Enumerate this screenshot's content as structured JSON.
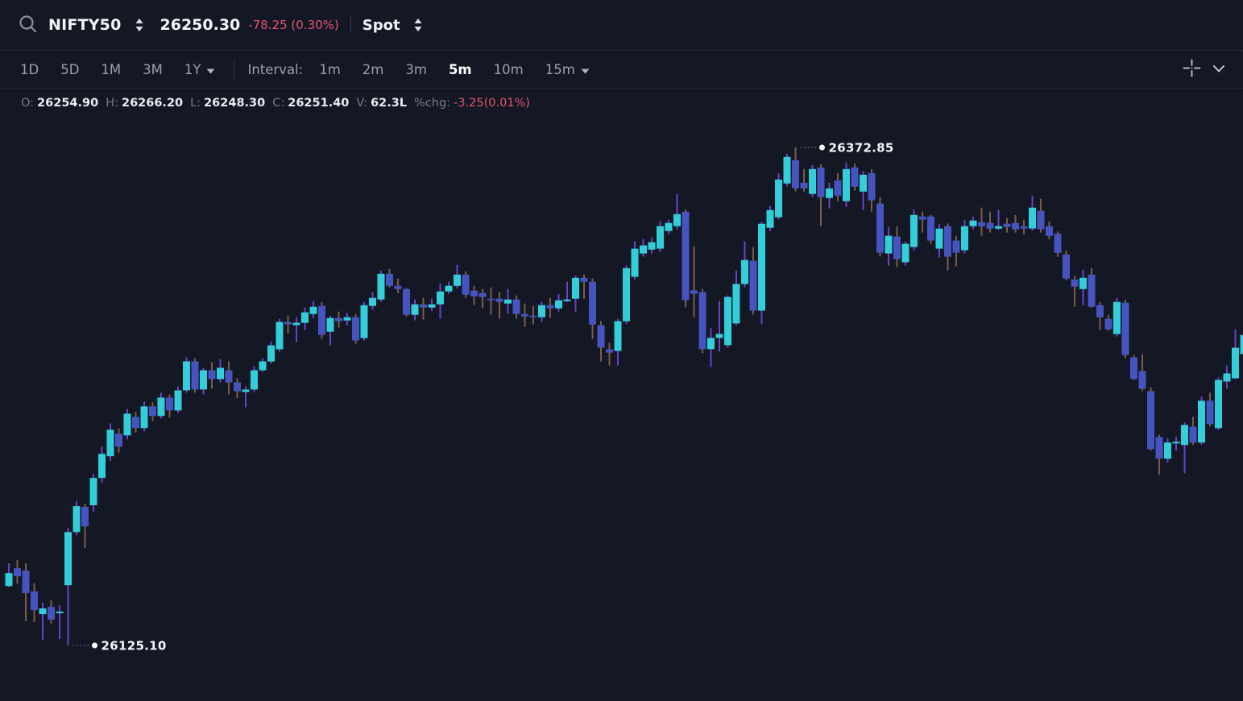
{
  "header": {
    "symbol": "NIFTY50",
    "price": "26250.30",
    "change": "-78.25 (0.30%)",
    "market_type": "Spot"
  },
  "toolbar": {
    "ranges": [
      "1D",
      "5D",
      "1M",
      "3M"
    ],
    "range_dropdown": "1Y",
    "interval_label": "Interval:",
    "intervals": [
      "1m",
      "2m",
      "3m",
      "5m",
      "10m"
    ],
    "interval_dropdown": "15m",
    "active_interval": "5m"
  },
  "ohlc": {
    "o_label": "O:",
    "o": "26254.90",
    "h_label": "H:",
    "h": "26266.20",
    "l_label": "L:",
    "l": "26248.30",
    "c_label": "C:",
    "c": "26251.40",
    "v_label": "V:",
    "v": "62.3L",
    "chg_label": "%chg:",
    "chg": "-3.25(0.01%)"
  },
  "chart_data": {
    "type": "candlestick",
    "symbol": "NIFTY50",
    "interval": "5m",
    "legend_position": "none",
    "grid": false,
    "price_high": 26372.85,
    "price_low": 26125.1,
    "high_label": "26372.85",
    "low_label": "26125.10",
    "colors": {
      "background": "#131824",
      "up_body": "#33CED9",
      "down_body": "#4754C0",
      "up_wick": "#6843C8",
      "down_wick": "#7D5B4A",
      "marker_dot": "#FFFFFF",
      "marker_line": "#8F93A0",
      "negative_text": "#E4566E"
    },
    "candles": [
      [
        26154.6,
        26165.9,
        26154.2,
        26161.1
      ],
      [
        26163.5,
        26167.5,
        26155.8,
        26159.5
      ],
      [
        26162.3,
        26165.9,
        26137.1,
        26151.1
      ],
      [
        26151.9,
        26156.1,
        26136.7,
        26142.7
      ],
      [
        26140.7,
        26146.3,
        26127.9,
        26143.5
      ],
      [
        26144.3,
        26147.5,
        26135.9,
        26137.9
      ],
      [
        26141.1,
        26145.1,
        26128.3,
        26141.9
      ],
      [
        26155.1,
        26183.5,
        26125.1,
        26181.5
      ],
      [
        26181.5,
        26197.0,
        26179.9,
        26194.4
      ],
      [
        26194.0,
        26195.6,
        26173.6,
        26184.3
      ],
      [
        26194.8,
        26210.4,
        26191.6,
        26208.4
      ],
      [
        26208.4,
        26224.0,
        26206.0,
        26220.4
      ],
      [
        26219.2,
        26235.6,
        26217.0,
        26232.4
      ],
      [
        26230.4,
        26233.0,
        26221.0,
        26224.0
      ],
      [
        26229.6,
        26242.8,
        26227.6,
        26240.4
      ],
      [
        26238.8,
        26241.2,
        26231.0,
        26233.2
      ],
      [
        26233.2,
        26246.4,
        26231.6,
        26244.0
      ],
      [
        26244.0,
        26246.0,
        26236.8,
        26239.2
      ],
      [
        26239.2,
        26250.8,
        26238.0,
        26248.4
      ],
      [
        26248.4,
        26250.0,
        26238.4,
        26242.0
      ],
      [
        26242.0,
        26254.0,
        26240.8,
        26252.0
      ],
      [
        26252.0,
        26268.4,
        26250.8,
        26266.4
      ],
      [
        26266.4,
        26268.0,
        26250.8,
        26252.4
      ],
      [
        26252.4,
        26263.2,
        26250.0,
        26262.0
      ],
      [
        26262.0,
        26266.0,
        26252.8,
        26257.6
      ],
      [
        26257.6,
        26267.6,
        26256.0,
        26263.2
      ],
      [
        26262.0,
        26266.4,
        26250.0,
        26256.0
      ],
      [
        26256.0,
        26258.0,
        26248.0,
        26251.6
      ],
      [
        26251.2,
        26254.0,
        26243.6,
        26252.4
      ],
      [
        26252.4,
        26264.0,
        26251.2,
        26262.0
      ],
      [
        26262.0,
        26268.0,
        26261.2,
        26266.4
      ],
      [
        26266.4,
        26276.4,
        26265.2,
        26274.4
      ],
      [
        26272.4,
        26287.6,
        26271.2,
        26286.0
      ],
      [
        26286.0,
        26289.2,
        26280.4,
        26284.8
      ],
      [
        26284.4,
        26288.4,
        26276.0,
        26285.6
      ],
      [
        26285.6,
        26293.2,
        26282.0,
        26290.8
      ],
      [
        26290.0,
        26296.4,
        26288.0,
        26293.6
      ],
      [
        26294.0,
        26296.0,
        26277.6,
        26279.6
      ],
      [
        26281.2,
        26289.2,
        26274.4,
        26288.0
      ],
      [
        26288.0,
        26291.2,
        26283.2,
        26286.4
      ],
      [
        26286.8,
        26290.4,
        26284.4,
        26288.4
      ],
      [
        26288.4,
        26290.0,
        26275.2,
        26276.8
      ],
      [
        26278.0,
        26296.0,
        26276.8,
        26294.4
      ],
      [
        26294.0,
        26300.8,
        26292.0,
        26298.0
      ],
      [
        26297.2,
        26311.6,
        26296.0,
        26310.0
      ],
      [
        26310.0,
        26312.4,
        26303.2,
        26304.0
      ],
      [
        26304.0,
        26307.6,
        26300.4,
        26302.4
      ],
      [
        26302.4,
        26302.8,
        26288.8,
        26289.6
      ],
      [
        26289.6,
        26297.2,
        26286.8,
        26294.8
      ],
      [
        26294.8,
        26298.0,
        26287.2,
        26293.2
      ],
      [
        26293.2,
        26297.6,
        26291.6,
        26294.8
      ],
      [
        26294.8,
        26305.2,
        26287.6,
        26301.2
      ],
      [
        26301.2,
        26306.0,
        26300.0,
        26304.0
      ],
      [
        26304.0,
        26314.4,
        26302.8,
        26309.6
      ],
      [
        26309.6,
        26311.2,
        26298.0,
        26299.6
      ],
      [
        26301.6,
        26304.0,
        26294.4,
        26298.8
      ],
      [
        26300.4,
        26302.4,
        26292.8,
        26298.4
      ],
      [
        26297.6,
        26303.2,
        26289.6,
        26297.0
      ],
      [
        26297.6,
        26300.8,
        26287.6,
        26296.0
      ],
      [
        26295.2,
        26302.4,
        26290.0,
        26297.2
      ],
      [
        26297.2,
        26299.2,
        26287.6,
        26290.0
      ],
      [
        26290.0,
        26295.2,
        26283.6,
        26288.8
      ],
      [
        26289.2,
        26294.0,
        26284.8,
        26288.4
      ],
      [
        26288.4,
        26296.0,
        26286.0,
        26294.4
      ],
      [
        26294.4,
        26298.0,
        26288.0,
        26292.8
      ],
      [
        26292.8,
        26300.0,
        26291.2,
        26296.8
      ],
      [
        26296.4,
        26306.0,
        26296.0,
        26297.2
      ],
      [
        26297.6,
        26309.2,
        26291.2,
        26308.0
      ],
      [
        26308.0,
        26309.6,
        26297.6,
        26306.0
      ],
      [
        26306.0,
        26307.6,
        26277.6,
        26284.8
      ],
      [
        26284.4,
        26286.4,
        26266.4,
        26273.2
      ],
      [
        26272.4,
        26275.6,
        26264.4,
        26270.8
      ],
      [
        26271.6,
        26287.6,
        26264.4,
        26286.4
      ],
      [
        26286.4,
        26314.1,
        26285.0,
        26312.8
      ],
      [
        26308.5,
        26326.1,
        26307.3,
        26322.5
      ],
      [
        26320.1,
        26327.3,
        26318.5,
        26324.1
      ],
      [
        26322.0,
        26328.1,
        26320.1,
        26325.7
      ],
      [
        26322.5,
        26336.1,
        26320.9,
        26333.7
      ],
      [
        26331.3,
        26336.9,
        26329.7,
        26335.3
      ],
      [
        26333.7,
        26349.7,
        26332.1,
        26339.7
      ],
      [
        26340.9,
        26342.1,
        26293.3,
        26296.9
      ],
      [
        26301.7,
        26323.7,
        26288.5,
        26300.1
      ],
      [
        26300.9,
        26302.5,
        26270.5,
        26272.5
      ],
      [
        26272.5,
        26282.9,
        26263.7,
        26278.1
      ],
      [
        26278.1,
        26296.5,
        26271.3,
        26280.1
      ],
      [
        26274.5,
        26299.3,
        26273.3,
        26298.5
      ],
      [
        26285.3,
        26311.7,
        26284.1,
        26304.9
      ],
      [
        26304.9,
        26326.1,
        26303.3,
        26316.9
      ],
      [
        26316.5,
        26323.3,
        26289.7,
        26291.7
      ],
      [
        26291.7,
        26335.7,
        26284.9,
        26334.9
      ],
      [
        26332.9,
        26343.7,
        26331.3,
        26341.7
      ],
      [
        26338.1,
        26360.1,
        26337.0,
        26356.9
      ],
      [
        26354.9,
        26369.7,
        26353.5,
        26368.1
      ],
      [
        26366.5,
        26372.85,
        26351.0,
        26352.5
      ],
      [
        26355.3,
        26362.1,
        26350.9,
        26352.5
      ],
      [
        26349.7,
        26364.1,
        26348.1,
        26362.1
      ],
      [
        26362.9,
        26364.5,
        26333.7,
        26348.1
      ],
      [
        26347.7,
        26355.3,
        26342.5,
        26352.5
      ],
      [
        26356.5,
        26360.1,
        26346.1,
        26348.9
      ],
      [
        26346.1,
        26365.3,
        26343.3,
        26362.1
      ],
      [
        26362.9,
        26364.9,
        26351.3,
        26353.3
      ],
      [
        26350.9,
        26361.0,
        26341.7,
        26359.3
      ],
      [
        26360.1,
        26362.0,
        26340.9,
        26346.5
      ],
      [
        26344.9,
        26348.1,
        26318.5,
        26320.5
      ],
      [
        26320.1,
        26333.2,
        26314.1,
        26328.9
      ],
      [
        26328.5,
        26333.7,
        26313.3,
        26317.3
      ],
      [
        26315.7,
        26326.0,
        26314.1,
        26324.9
      ],
      [
        26323.3,
        26342.1,
        26321.7,
        26339.3
      ],
      [
        26338.5,
        26340.9,
        26330.5,
        26336.9
      ],
      [
        26338.5,
        26339.3,
        26324.9,
        26326.5
      ],
      [
        26322.5,
        26334.9,
        26318.1,
        26332.5
      ],
      [
        26333.7,
        26335.0,
        26311.7,
        26318.5
      ],
      [
        26326.5,
        26328.9,
        26313.7,
        26320.5
      ],
      [
        26321.7,
        26336.9,
        26320.1,
        26333.7
      ],
      [
        26333.7,
        26338.5,
        26332.1,
        26336.5
      ],
      [
        26335.7,
        26342.9,
        26328.9,
        26333.6
      ],
      [
        26335.3,
        26340.9,
        26330.5,
        26332.5
      ],
      [
        26332.5,
        26341.7,
        26331.7,
        26333.7
      ],
      [
        26334.9,
        26337.7,
        26330.5,
        26333.3
      ],
      [
        26335.3,
        26339.3,
        26330.5,
        26332.1
      ],
      [
        26333.7,
        26336.9,
        26329.7,
        26332.5
      ],
      [
        26332.5,
        26348.9,
        26331.3,
        26342.9
      ],
      [
        26341.3,
        26347.3,
        26330.5,
        26332.1
      ],
      [
        26333.6,
        26336.0,
        26327.2,
        26328.8
      ],
      [
        26330.0,
        26331.0,
        26318.4,
        26320.4
      ],
      [
        26319.6,
        26321.6,
        26306.8,
        26307.6
      ],
      [
        26307.2,
        26309.0,
        26293.6,
        26303.6
      ],
      [
        26302.4,
        26312.0,
        26294.4,
        26308.0
      ],
      [
        26309.6,
        26312.8,
        26293.2,
        26293.6
      ],
      [
        26294.4,
        26296.0,
        26282.0,
        26288.4
      ],
      [
        26287.6,
        26289.6,
        26281.6,
        26282.4
      ],
      [
        26280.0,
        26298.0,
        26278.8,
        26296.0
      ],
      [
        26295.6,
        26297.0,
        26268.0,
        26269.6
      ],
      [
        26268.4,
        26269.6,
        26257.2,
        26257.6
      ],
      [
        26261.6,
        26270.0,
        26251.6,
        26252.8
      ],
      [
        26251.6,
        26253.6,
        26222.0,
        26222.8
      ],
      [
        26228.8,
        26230.0,
        26210.0,
        26218.0
      ],
      [
        26218.0,
        26228.0,
        26216.0,
        26226.0
      ],
      [
        26225.6,
        26229.0,
        26222.0,
        26226.4
      ],
      [
        26224.8,
        26236.0,
        26210.8,
        26234.8
      ],
      [
        26233.9,
        26238.8,
        26224.8,
        26226.0
      ],
      [
        26226.0,
        26248.8,
        26225.0,
        26246.8
      ],
      [
        26246.8,
        26250.8,
        26234.0,
        26235.2
      ],
      [
        26233.2,
        26258.4,
        26232.4,
        26257.2
      ],
      [
        26256.4,
        26264.4,
        26252.8,
        26260.4
      ],
      [
        26258.0,
        26282.4,
        26257.6,
        26273.2
      ],
      [
        26270.0,
        26282.0,
        26268.4,
        26279.6
      ]
    ]
  }
}
